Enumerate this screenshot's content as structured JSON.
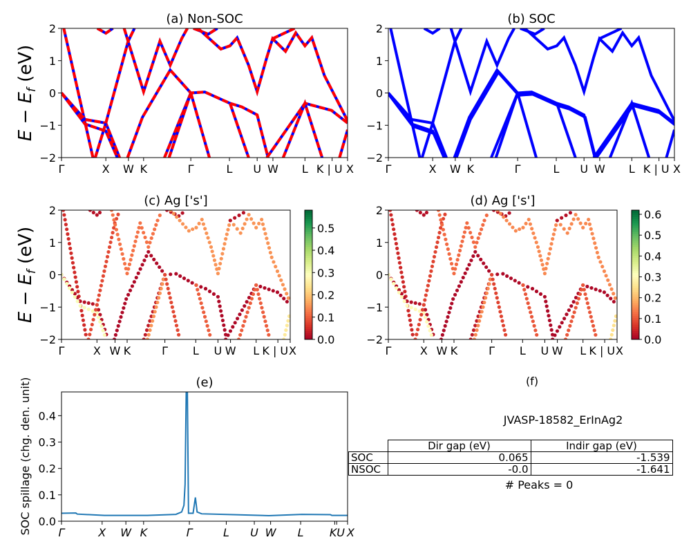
{
  "chart_data": [
    {
      "type": "line",
      "title": "(a) Non-SOC",
      "ylabel_parts": [
        "E − E",
        "f",
        " (eV)"
      ],
      "ylim": [
        -2,
        2
      ],
      "yticks": [
        "2",
        "1",
        "0",
        "−1",
        "−2"
      ],
      "ytick_values": [
        2,
        1,
        0,
        -1,
        -2
      ],
      "xticks": [
        "Γ",
        "X",
        "W",
        "K",
        "Γ",
        "L",
        "U",
        "W",
        "L",
        "K | U",
        "X"
      ],
      "xtick_values": [
        0,
        0.155,
        0.234,
        0.287,
        0.452,
        0.587,
        0.684,
        0.739,
        0.851,
        0.946,
        1.0
      ],
      "style": "red line with blue dashes overlay",
      "colors": {
        "solid": "#0000ff",
        "dashed": "#ff0000"
      },
      "bands": [
        [
          [
            0.008,
            2
          ],
          [
            0.11,
            -2
          ]
        ],
        [
          [
            0,
            0
          ],
          [
            0.082,
            -0.82
          ],
          [
            0.155,
            -0.93
          ],
          [
            0.203,
            -2
          ]
        ],
        [
          [
            0,
            0
          ],
          [
            0.082,
            -0.96
          ],
          [
            0.155,
            -1.18
          ],
          [
            0.195,
            -2
          ]
        ],
        [
          [
            0.118,
            -2
          ],
          [
            0.155,
            -0.93
          ],
          [
            0.233,
            1.6
          ],
          [
            0.255,
            2
          ]
        ],
        [
          [
            0.219,
            2
          ],
          [
            0.287,
            0.04
          ],
          [
            0.344,
            1.6
          ],
          [
            0.38,
            0.86
          ],
          [
            0.42,
            1.68
          ],
          [
            0.44,
            2
          ]
        ],
        [
          [
            0.231,
            -2
          ],
          [
            0.283,
            -0.75
          ],
          [
            0.38,
            0.71
          ],
          [
            0.452,
            0
          ],
          [
            0.501,
            0.03
          ],
          [
            0.589,
            -0.32
          ],
          [
            0.63,
            -0.43
          ],
          [
            0.684,
            -0.68
          ],
          [
            0.722,
            -2
          ]
        ],
        [
          [
            0.36,
            -2
          ],
          [
            0.452,
            0
          ]
        ],
        [
          [
            0.376,
            -2
          ],
          [
            0.452,
            0
          ]
        ],
        [
          [
            0.452,
            0
          ],
          [
            0.517,
            -2
          ]
        ],
        [
          [
            0.589,
            -0.32
          ],
          [
            0.654,
            -2
          ]
        ],
        [
          [
            0.461,
            2
          ],
          [
            0.513,
            1.82
          ],
          [
            0.545,
            2
          ]
        ],
        [
          [
            0.477,
            2
          ],
          [
            0.557,
            1.36
          ],
          [
            0.589,
            1.46
          ],
          [
            0.614,
            1.71
          ],
          [
            0.654,
            0.86
          ],
          [
            0.684,
            0.04
          ],
          [
            0.718,
            1.11
          ],
          [
            0.738,
            1.68
          ],
          [
            0.783,
            1.29
          ],
          [
            0.819,
            1.86
          ],
          [
            0.851,
            1.46
          ],
          [
            0.875,
            1.71
          ],
          [
            0.919,
            0.54
          ],
          [
            0.944,
            0.11
          ],
          [
            1.0,
            -0.86
          ]
        ],
        [
          [
            0.738,
            1.68
          ],
          [
            0.815,
            2
          ]
        ],
        [
          [
            0.718,
            -2
          ],
          [
            0.851,
            -0.32
          ],
          [
            0.944,
            -0.54
          ],
          [
            1.0,
            -0.93
          ]
        ],
        [
          [
            0.775,
            -2
          ],
          [
            0.851,
            -0.32
          ],
          [
            0.911,
            -2
          ]
        ],
        [
          [
            0.972,
            -2
          ],
          [
            1.0,
            -1.14
          ]
        ],
        [
          [
            0.125,
            2
          ],
          [
            0.155,
            1.85
          ],
          [
            0.18,
            2
          ]
        ]
      ]
    },
    {
      "type": "line",
      "title": "(b) SOC",
      "ylim": [
        -2,
        2
      ],
      "yticks": [
        "2",
        "1",
        "0",
        "−1",
        "−2"
      ],
      "ytick_values": [
        2,
        1,
        0,
        -1,
        -2
      ],
      "xticks": [
        "Γ",
        "X",
        "W",
        "K",
        "Γ",
        "L",
        "U",
        "W",
        "L",
        "K | U",
        "X"
      ],
      "xtick_values": [
        0,
        0.155,
        0.234,
        0.287,
        0.452,
        0.587,
        0.684,
        0.739,
        0.851,
        0.946,
        1.0
      ],
      "colors": {
        "solid": "#0000ff"
      },
      "bands_ref": "same as (a) with SOC splitting"
    },
    {
      "type": "scatter",
      "title": "(c)  Ag ['s']",
      "ylabel_parts": [
        "E − E",
        "f",
        " (eV)"
      ],
      "ylim": [
        -2,
        2
      ],
      "colorbar": {
        "range": [
          0,
          0.58
        ],
        "ticks": [
          "0.0",
          "0.1",
          "0.2",
          "0.3",
          "0.4",
          "0.5"
        ],
        "tick_values": [
          0,
          0.1,
          0.2,
          0.3,
          0.4,
          0.5
        ],
        "colormap": "RdYlGn"
      },
      "band_weights": [
        0.05,
        0.02,
        0.3,
        0.08,
        0.12,
        0.01,
        0.03,
        0.15,
        0.08,
        0.1,
        0.02,
        0.15,
        0.02,
        0.01,
        0.1,
        0.25,
        0.02
      ]
    },
    {
      "type": "scatter",
      "title": "(d) Ag ['s']",
      "ylim": [
        -2,
        2
      ],
      "colorbar": {
        "range": [
          0,
          0.62
        ],
        "ticks": [
          "0.0",
          "0.1",
          "0.2",
          "0.3",
          "0.4",
          "0.5",
          "0.6"
        ],
        "tick_values": [
          0,
          0.1,
          0.2,
          0.3,
          0.4,
          0.5,
          0.6
        ],
        "colormap": "RdYlGn"
      },
      "band_weights": [
        0.05,
        0.02,
        0.3,
        0.08,
        0.12,
        0.01,
        0.03,
        0.15,
        0.08,
        0.1,
        0.02,
        0.15,
        0.02,
        0.01,
        0.1,
        0.25,
        0.02
      ]
    },
    {
      "type": "line",
      "title": "(e)",
      "ylabel": "SOC spillage (chg. den. unit)",
      "ylim": [
        0,
        0.49
      ],
      "yticks": [
        "0.0",
        "0.1",
        "0.2",
        "0.3",
        "0.4"
      ],
      "ytick_values": [
        0,
        0.1,
        0.2,
        0.3,
        0.4
      ],
      "xticks": [
        "Γ",
        "X",
        "W",
        "K",
        "Γ",
        "L",
        "U",
        "W",
        "L",
        "K",
        "U",
        "X"
      ],
      "xtick_values": [
        0,
        0.142,
        0.225,
        0.287,
        0.447,
        0.576,
        0.674,
        0.731,
        0.836,
        0.955,
        0.962,
        1.0
      ],
      "color": "#1f77b4",
      "x": [
        0,
        0.05,
        0.055,
        0.15,
        0.3,
        0.4,
        0.42,
        0.428,
        0.432,
        0.436,
        0.44,
        0.444,
        0.46,
        0.468,
        0.474,
        0.49,
        0.6,
        0.725,
        0.84,
        0.94,
        0.945,
        1.0
      ],
      "y": [
        0.03,
        0.031,
        0.027,
        0.022,
        0.022,
        0.026,
        0.035,
        0.06,
        0.14,
        0.49,
        0.49,
        0.03,
        0.03,
        0.09,
        0.035,
        0.028,
        0.025,
        0.021,
        0.026,
        0.025,
        0.022,
        0.022
      ]
    }
  ],
  "panel_f": {
    "title": "(f)",
    "material": "JVASP-18582_ErInAg2",
    "table": {
      "columns": [
        "Dir gap (eV)",
        "Indir gap (eV)"
      ],
      "rows": [
        {
          "label": "SOC",
          "dir": "0.065",
          "indir": "-1.539"
        },
        {
          "label": "NSOC",
          "dir": "-0.0",
          "indir": "-1.641"
        }
      ]
    },
    "peaks": "# Peaks = 0"
  }
}
